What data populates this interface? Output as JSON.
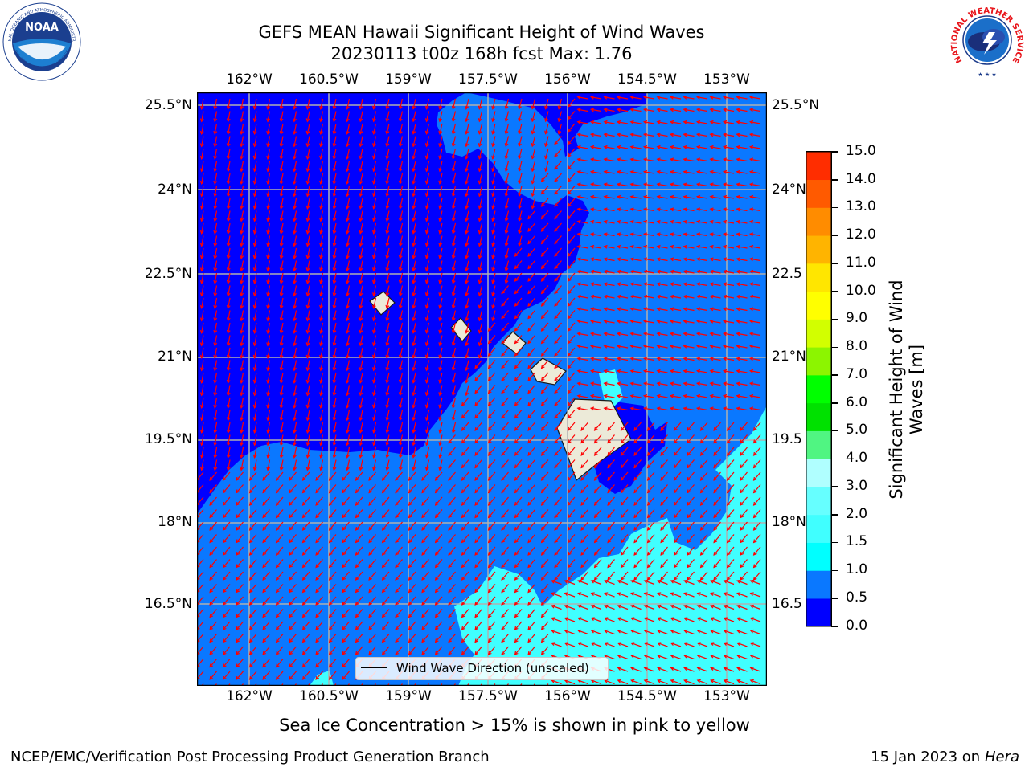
{
  "title": {
    "line1": "GEFS MEAN Hawaii Significant Height of Wind Waves",
    "line2": "20230113 t00z 168h fcst   Max: 1.76"
  },
  "logos": {
    "noaa": "NOAA",
    "noaa_ring_top": "NATIONAL OCEANIC AND ATMOSPHERIC ADMINISTRATION",
    "noaa_ring_bottom": "U.S. DEPARTMENT OF COMMERCE",
    "nws_ring": "NATIONAL WEATHER SERVICE"
  },
  "map": {
    "lon_labels": [
      "162°W",
      "160.5°W",
      "159°W",
      "157.5°W",
      "156°W",
      "154.5°W",
      "153°W"
    ],
    "lat_labels": [
      "25.5°N",
      "24°N",
      "22.5°N",
      "21°N",
      "19.5°N",
      "18°N",
      "16.5°N"
    ],
    "right_lat_labels": [
      "25.5°N",
      "24°N",
      "22.5",
      "21°N",
      "19.5",
      "18°N",
      "16.5"
    ],
    "legend_label": "Wind Wave Direction (unscaled)",
    "vector_color": "#ff0000",
    "land_color": "#ecead8",
    "grid_color": "#b0b0b0"
  },
  "colorbar": {
    "label": "Significant Height of Wind Waves [m]",
    "label_line1": "Significant Height of Wind",
    "label_line2": "Waves [m]",
    "ticks": [
      "0.0",
      "0.5",
      "1.0",
      "1.5",
      "2.0",
      "3.0",
      "4.0",
      "5.0",
      "6.0",
      "7.0",
      "8.0",
      "9.0",
      "10.0",
      "11.0",
      "12.0",
      "13.0",
      "14.0",
      "15.0"
    ],
    "colors": [
      "#0000ff",
      "#0a78ff",
      "#00ffff",
      "#40ffff",
      "#66ffff",
      "#b0ffff",
      "#50f582",
      "#00e100",
      "#00ff00",
      "#8cf500",
      "#d2ff00",
      "#ffff00",
      "#ffe600",
      "#ffb400",
      "#ff8c00",
      "#ff5a00",
      "#ff2d00",
      "#ff0000"
    ]
  },
  "note": "Sea Ice Concentration > 15% is shown in pink to yellow",
  "footer": {
    "left": "NCEP/EMC/Verification Post Processing Product Generation Branch",
    "right_date": "15 Jan 2023 on ",
    "right_host": "Hera"
  }
}
